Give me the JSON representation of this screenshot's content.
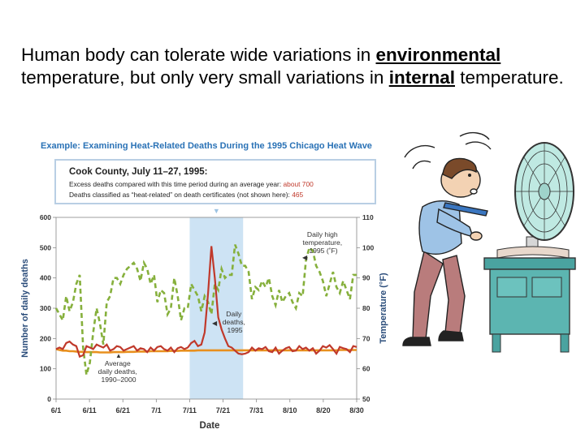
{
  "headline": {
    "part1": "Human body can tolerate wide variations in ",
    "keyword1": "environmental",
    "part2": " temperature, but only very small variations in ",
    "keyword2": "internal",
    "part3": " temperature."
  },
  "colors": {
    "figure_title": "#2a72b6",
    "box_border": "#b9cfe4",
    "about_700": "#c0392b",
    "temperature_line": "#86b03c",
    "deaths_line": "#c0392b",
    "average_line": "#e8901e",
    "heatwave_band": "#cde3f4",
    "axis_text": "#333333"
  },
  "chart_data": {
    "type": "line",
    "title": "Example: Examining Heat-Related Deaths During the 1995 Chicago Heat Wave",
    "info_box": {
      "heading": "Cook County, July 11–27, 1995:",
      "line1": "Excess deaths compared with this time period during an average year: ",
      "line1_value": "about 700",
      "line2": "Deaths classified as “heat-related” on death certificates (not shown here): ",
      "line2_value": "465"
    },
    "xlabel": "Date",
    "ylabel_left": "Number of daily deaths",
    "ylabel_right": "Temperature (°F)",
    "x_ticks": [
      "6/1",
      "6/11",
      "6/21",
      "7/1",
      "7/11",
      "7/21",
      "7/31",
      "8/10",
      "8/20",
      "8/30"
    ],
    "x_range_days": [
      0,
      90
    ],
    "ylim_left": [
      0,
      600
    ],
    "y_ticks_left": [
      "0",
      "100",
      "200",
      "300",
      "400",
      "500",
      "600"
    ],
    "ylim_right": [
      50,
      110
    ],
    "y_ticks_right": [
      "50",
      "60",
      "70",
      "80",
      "90",
      "100",
      "110"
    ],
    "heatwave_days": [
      40,
      56
    ],
    "annotations": {
      "temperature": [
        "Daily high",
        "temperature,",
        "1995 (˚F)"
      ],
      "deaths": [
        "Daily",
        "deaths,",
        "1995"
      ],
      "average": [
        "Average",
        "daily deaths,",
        "1990–2000"
      ]
    },
    "series": [
      {
        "name": "Daily high temperature, 1995 (°F)",
        "axis": "right",
        "style": "dashed",
        "values": [
          80,
          78,
          76,
          84,
          79,
          82,
          88,
          91,
          67,
          58,
          62,
          72,
          80,
          75,
          68,
          82,
          84,
          90,
          90,
          88,
          91,
          93,
          94,
          95,
          93,
          89,
          95,
          93,
          88,
          91,
          82,
          86,
          85,
          78,
          80,
          90,
          84,
          76,
          80,
          80,
          88,
          86,
          84,
          79,
          84,
          82,
          78,
          88,
          86,
          93,
          90,
          91,
          91,
          101,
          98,
          94,
          94,
          92,
          83,
          87,
          86,
          89,
          87,
          90,
          84,
          81,
          86,
          82,
          84,
          85,
          82,
          80,
          85,
          84,
          96,
          100,
          99,
          94,
          92,
          89,
          84,
          88,
          92,
          87,
          85,
          89,
          86,
          83,
          91,
          91
        ]
      },
      {
        "name": "Daily deaths, 1995",
        "axis": "left",
        "style": "solid",
        "values": [
          165,
          170,
          165,
          185,
          190,
          180,
          175,
          140,
          145,
          175,
          170,
          165,
          180,
          175,
          170,
          180,
          160,
          165,
          175,
          172,
          160,
          165,
          170,
          175,
          160,
          168,
          165,
          155,
          170,
          160,
          172,
          175,
          165,
          160,
          170,
          155,
          168,
          172,
          165,
          170,
          185,
          192,
          175,
          180,
          220,
          350,
          505,
          400,
          270,
          230,
          200,
          175,
          170,
          160,
          150,
          148,
          150,
          155,
          170,
          160,
          168,
          165,
          172,
          158,
          155,
          170,
          150,
          160,
          168,
          172,
          158,
          160,
          175,
          165,
          170,
          160,
          168,
          150,
          160,
          175,
          170,
          178,
          165,
          150,
          172,
          168,
          165,
          155,
          175,
          172
        ]
      },
      {
        "name": "Average daily deaths, 1990–2000",
        "axis": "left",
        "style": "solid",
        "values": [
          165,
          162,
          160,
          160,
          158,
          158,
          157,
          156,
          156,
          155,
          155,
          155,
          155,
          154,
          154,
          154,
          154,
          155,
          155,
          155,
          155,
          156,
          156,
          156,
          157,
          157,
          157,
          157,
          158,
          158,
          158,
          158,
          158,
          158,
          159,
          159,
          159,
          160,
          160,
          160,
          160,
          160,
          161,
          161,
          161,
          161,
          161,
          161,
          161,
          161,
          161,
          161,
          161,
          161,
          161,
          161,
          161,
          161,
          161,
          161,
          161,
          161,
          161,
          161,
          161,
          161,
          161,
          161,
          161,
          161,
          161,
          161,
          161,
          161,
          161,
          161,
          161,
          161,
          161,
          161,
          161,
          161,
          161,
          161,
          162,
          162,
          162,
          162,
          162,
          162
        ]
      }
    ]
  }
}
